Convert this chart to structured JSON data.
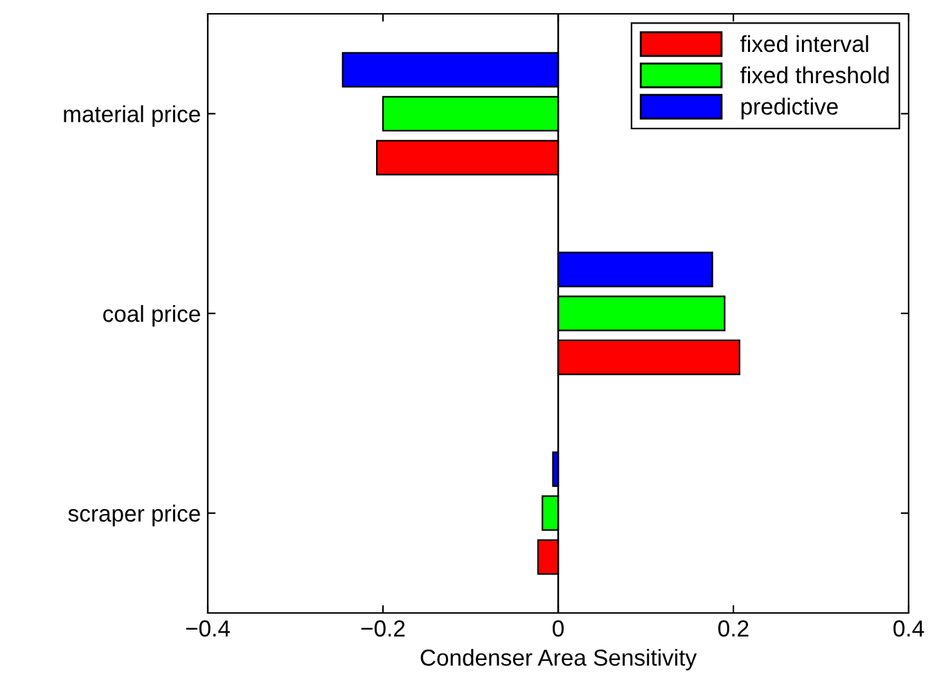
{
  "chart_data": {
    "type": "bar",
    "orientation": "horizontal",
    "xlabel": "Condenser Area Sensitivity",
    "categories": [
      "material price",
      "coal price",
      "scraper price"
    ],
    "series": [
      {
        "name": "fixed interval",
        "color": "#ff0000",
        "values": [
          -0.207,
          0.207,
          -0.023
        ]
      },
      {
        "name": "fixed threshold",
        "color": "#00ff00",
        "values": [
          -0.2,
          0.19,
          -0.018
        ]
      },
      {
        "name": "predictive",
        "color": "#0000ff",
        "values": [
          -0.246,
          0.176,
          -0.006
        ]
      }
    ],
    "xlim": [
      -0.4,
      0.4
    ],
    "xticks": [
      {
        "value": -0.4,
        "label": "−0.4"
      },
      {
        "value": -0.2,
        "label": "−0.2"
      },
      0,
      0.2,
      0.4
    ],
    "ref_lines": [
      {
        "axis": "x",
        "value": 0,
        "color": "#000000"
      }
    ],
    "legend": "top right",
    "grid": false
  }
}
